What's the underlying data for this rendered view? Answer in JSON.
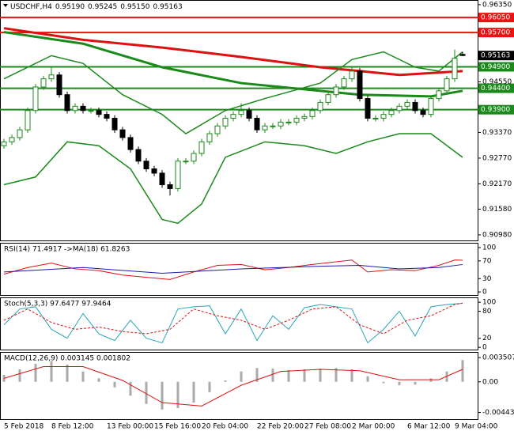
{
  "chart_data": [
    {
      "type": "candlestick",
      "title": "USDCHF,H4",
      "ohlc_labels": [
        "0.95190",
        "0.95245",
        "0.95150",
        "0.95163"
      ],
      "categories": [
        "5 Feb 2018",
        null,
        null,
        null,
        null,
        null,
        "8 Feb 12:00",
        null,
        null,
        null,
        null,
        null,
        null,
        "13 Feb 00:00",
        null,
        null,
        null,
        null,
        null,
        "15 Feb 16:00",
        null,
        null,
        null,
        null,
        null,
        "20 Feb 04:00",
        null,
        null,
        null,
        null,
        null,
        null,
        "22 Feb 20:00",
        null,
        null,
        null,
        null,
        null,
        "27 Feb 08:00",
        null,
        null,
        null,
        null,
        null,
        "2 Mar 00:00",
        null,
        null,
        null,
        null,
        null,
        null,
        "6 Mar 12:00",
        null,
        null,
        null,
        null,
        null,
        "9 Mar 04:00",
        null
      ],
      "open": [
        0.9306,
        0.9315,
        0.9325,
        0.9343,
        0.9388,
        0.9443,
        0.9462,
        0.9471,
        0.9425,
        0.9388,
        0.9398,
        0.9388,
        0.9388,
        0.9379,
        0.937,
        0.9343,
        0.9325,
        0.9297,
        0.927,
        0.9252,
        0.9242,
        0.9215,
        0.9206,
        0.927,
        0.927,
        0.9288,
        0.9315,
        0.9334,
        0.9352,
        0.937,
        0.9379,
        0.9388,
        0.937,
        0.9343,
        0.9352,
        0.9352,
        0.9361,
        0.9361,
        0.937,
        0.9374,
        0.9388,
        0.9407,
        0.9425,
        0.9443,
        0.9462,
        0.948,
        0.9416,
        0.937,
        0.937,
        0.9379,
        0.9388,
        0.9398,
        0.9407,
        0.9388,
        0.9379,
        0.9416,
        0.9434,
        0.9462,
        0.9519
      ],
      "high": [
        0.9322,
        0.9332,
        0.935,
        0.9395,
        0.945,
        0.9469,
        0.949,
        0.9478,
        0.9432,
        0.9405,
        0.9405,
        0.9395,
        0.9395,
        0.9386,
        0.9377,
        0.935,
        0.9332,
        0.9304,
        0.9277,
        0.9259,
        0.9249,
        0.9222,
        0.9277,
        0.9277,
        0.9295,
        0.9322,
        0.9341,
        0.9359,
        0.9377,
        0.9386,
        0.9405,
        0.9395,
        0.9377,
        0.9359,
        0.9359,
        0.9368,
        0.9368,
        0.9377,
        0.9381,
        0.9395,
        0.9414,
        0.9432,
        0.945,
        0.9469,
        0.9492,
        0.9487,
        0.9423,
        0.9377,
        0.9386,
        0.9395,
        0.9405,
        0.9414,
        0.9414,
        0.9395,
        0.9423,
        0.9441,
        0.9469,
        0.953,
        0.95245
      ],
      "low": [
        0.9299,
        0.9308,
        0.9318,
        0.9336,
        0.9381,
        0.9436,
        0.9455,
        0.9418,
        0.9381,
        0.9381,
        0.9381,
        0.9381,
        0.9372,
        0.9363,
        0.9336,
        0.9318,
        0.929,
        0.9263,
        0.9245,
        0.9235,
        0.9208,
        0.919,
        0.9199,
        0.9263,
        0.9263,
        0.9281,
        0.9308,
        0.9327,
        0.9345,
        0.9363,
        0.9372,
        0.9363,
        0.9336,
        0.9336,
        0.9345,
        0.9345,
        0.9354,
        0.9354,
        0.9363,
        0.9367,
        0.9381,
        0.94,
        0.9418,
        0.9436,
        0.9455,
        0.9409,
        0.9363,
        0.9363,
        0.9363,
        0.9372,
        0.9381,
        0.9391,
        0.9381,
        0.9372,
        0.9372,
        0.9409,
        0.9427,
        0.9455,
        0.9515
      ],
      "close": [
        0.9315,
        0.9325,
        0.9343,
        0.9388,
        0.9443,
        0.9462,
        0.9471,
        0.9425,
        0.9388,
        0.9398,
        0.9388,
        0.9388,
        0.9379,
        0.937,
        0.9343,
        0.9325,
        0.9297,
        0.927,
        0.9252,
        0.9242,
        0.9215,
        0.9206,
        0.927,
        0.927,
        0.9288,
        0.9315,
        0.9334,
        0.9352,
        0.937,
        0.9379,
        0.9388,
        0.937,
        0.9343,
        0.9352,
        0.9352,
        0.9361,
        0.9361,
        0.937,
        0.9374,
        0.9388,
        0.9407,
        0.9425,
        0.9443,
        0.9462,
        0.948,
        0.9416,
        0.937,
        0.937,
        0.9379,
        0.9388,
        0.9398,
        0.9407,
        0.9388,
        0.9379,
        0.9416,
        0.9434,
        0.9462,
        0.951,
        0.95163
      ],
      "up_color": "#1a8a1a",
      "down_color": "#000000",
      "ylim": [
        0.9085,
        0.9644
      ],
      "yticks": [
        {
          "value": 0.9635,
          "label": "0.96350"
        },
        {
          "value": 0.9455,
          "label": "0.94550"
        },
        {
          "value": 0.9337,
          "label": "0.93370"
        },
        {
          "value": 0.9277,
          "label": "0.92770"
        },
        {
          "value": 0.9217,
          "label": "0.92170"
        },
        {
          "value": 0.9158,
          "label": "0.91580"
        },
        {
          "value": 0.9098,
          "label": "0.90980"
        }
      ],
      "last_price": 0.95163,
      "levels": [
        {
          "value": 0.9605,
          "label": "0.96050",
          "color": "#ee1111"
        },
        {
          "value": 0.957,
          "label": "0.95700",
          "color": "#ee1111"
        },
        {
          "value": 0.949,
          "label": "0.94900",
          "color": "#1a8a1a"
        },
        {
          "value": 0.944,
          "label": "0.94400",
          "color": "#1a8a1a"
        },
        {
          "value": 0.939,
          "label": "0.93900",
          "color": "#1a8a1a"
        }
      ],
      "overlays": [
        {
          "color": "#dd1111",
          "width": 3,
          "x": [
            0,
            10,
            20,
            30,
            40,
            45,
            50,
            58
          ],
          "values": [
            0.958,
            0.9553,
            0.9535,
            0.9513,
            0.9489,
            0.948,
            0.9471,
            0.948
          ]
        },
        {
          "color": "#1a8a1a",
          "width": 3,
          "x": [
            0,
            10,
            20,
            30,
            40,
            45,
            54,
            58
          ],
          "values": [
            0.9571,
            0.9544,
            0.9489,
            0.9452,
            0.9434,
            0.9425,
            0.9421,
            0.9434
          ]
        },
        {
          "color": "#1a8a1a",
          "width": 1.5,
          "x": [
            0,
            6,
            10,
            15,
            20,
            23,
            28,
            33,
            40,
            44,
            48,
            52,
            55,
            58
          ],
          "values": [
            0.9462,
            0.9516,
            0.9498,
            0.9425,
            0.9379,
            0.9334,
            0.9388,
            0.9416,
            0.9452,
            0.9507,
            0.9525,
            0.9489,
            0.948,
            0.9525
          ]
        },
        {
          "color": "#1a8a1a",
          "width": 1.5,
          "x": [
            0,
            4,
            8,
            12,
            16,
            20,
            22,
            25,
            28,
            33,
            38,
            42,
            46,
            50,
            54,
            58
          ],
          "values": [
            0.9215,
            0.9233,
            0.9315,
            0.9306,
            0.9252,
            0.9134,
            0.9125,
            0.917,
            0.9279,
            0.9315,
            0.9306,
            0.9288,
            0.9315,
            0.9334,
            0.9334,
            0.9279
          ]
        }
      ]
    },
    {
      "type": "line",
      "title": "RSI(14) 71.4917  ->MA(18) 61.8263",
      "ylim": [
        -7,
        109
      ],
      "yticks": [
        100,
        70,
        30,
        0
      ],
      "series": [
        {
          "color": "#dd1111",
          "x": [
            0,
            3,
            6,
            9,
            12,
            15,
            18,
            21,
            24,
            27,
            30,
            33,
            36,
            39,
            42,
            44,
            46,
            49,
            52,
            55,
            57,
            58
          ],
          "values": [
            40,
            55,
            65,
            52,
            48,
            38,
            33,
            28,
            45,
            60,
            62,
            50,
            55,
            62,
            68,
            72,
            45,
            50,
            48,
            60,
            72,
            71.4917
          ]
        },
        {
          "color": "#1a1aaa",
          "x": [
            0,
            10,
            20,
            30,
            40,
            45,
            50,
            55,
            58
          ],
          "values": [
            45,
            55,
            42,
            52,
            58,
            60,
            52,
            55,
            61.8263
          ]
        }
      ]
    },
    {
      "type": "line",
      "title": "Stoch(5,3,3) 97.6477 97.9464",
      "ylim": [
        -5,
        109
      ],
      "yticks": [
        100,
        80,
        20,
        0
      ],
      "series": [
        {
          "color": "#2aa6b8",
          "x": [
            0,
            2,
            4,
            6,
            8,
            10,
            12,
            14,
            16,
            18,
            20,
            22,
            24,
            26,
            28,
            30,
            32,
            34,
            36,
            38,
            40,
            42,
            44,
            46,
            48,
            50,
            52,
            54,
            56,
            58
          ],
          "values": [
            50,
            85,
            90,
            40,
            20,
            75,
            30,
            15,
            60,
            20,
            10,
            85,
            90,
            92,
            30,
            85,
            15,
            70,
            40,
            88,
            95,
            90,
            85,
            10,
            40,
            80,
            25,
            90,
            95,
            97.6477
          ]
        },
        {
          "color": "#dd1111",
          "dashed": true,
          "x": [
            0,
            3,
            6,
            9,
            12,
            15,
            18,
            21,
            24,
            27,
            30,
            33,
            36,
            39,
            42,
            45,
            48,
            51,
            54,
            57,
            58
          ],
          "values": [
            60,
            85,
            55,
            40,
            45,
            35,
            30,
            40,
            85,
            70,
            60,
            40,
            60,
            85,
            90,
            50,
            30,
            60,
            70,
            95,
            97.9464
          ]
        }
      ]
    },
    {
      "type": "macd",
      "title": "MACD(12,26,9) 0.003145 0.001802",
      "ylim": [
        -0.0054,
        0.0042
      ],
      "yticks": [
        0.003507,
        {
          "value": 0,
          "label": "0.00"
        },
        -0.004437
      ],
      "histogram": {
        "color": "#aaaaaa",
        "x": [
          0,
          2,
          4,
          6,
          8,
          10,
          12,
          14,
          16,
          18,
          20,
          22,
          24,
          26,
          28,
          30,
          32,
          34,
          36,
          38,
          40,
          42,
          44,
          46,
          48,
          50,
          52,
          54,
          56,
          58
        ],
        "values": [
          0.001,
          0.0018,
          0.0026,
          0.003,
          0.0025,
          0.0015,
          0.0005,
          -0.0008,
          -0.002,
          -0.0032,
          -0.004,
          -0.0038,
          -0.003,
          -0.0015,
          0.0002,
          0.0015,
          0.002,
          0.0019,
          0.0017,
          0.0018,
          0.0019,
          0.002,
          0.0018,
          0.0008,
          -0.0002,
          -0.0005,
          -0.0004,
          0.0005,
          0.0015,
          0.003145
        ]
      },
      "series": [
        {
          "color": "#dd1111",
          "x": [
            0,
            5,
            10,
            15,
            20,
            25,
            30,
            35,
            40,
            45,
            50,
            55,
            58
          ],
          "values": [
            0.0005,
            0.0022,
            0.0022,
            0.0002,
            -0.003,
            -0.0035,
            -0.0005,
            0.0015,
            0.0018,
            0.0016,
            0.0003,
            0.0003,
            0.001802
          ]
        }
      ]
    }
  ]
}
